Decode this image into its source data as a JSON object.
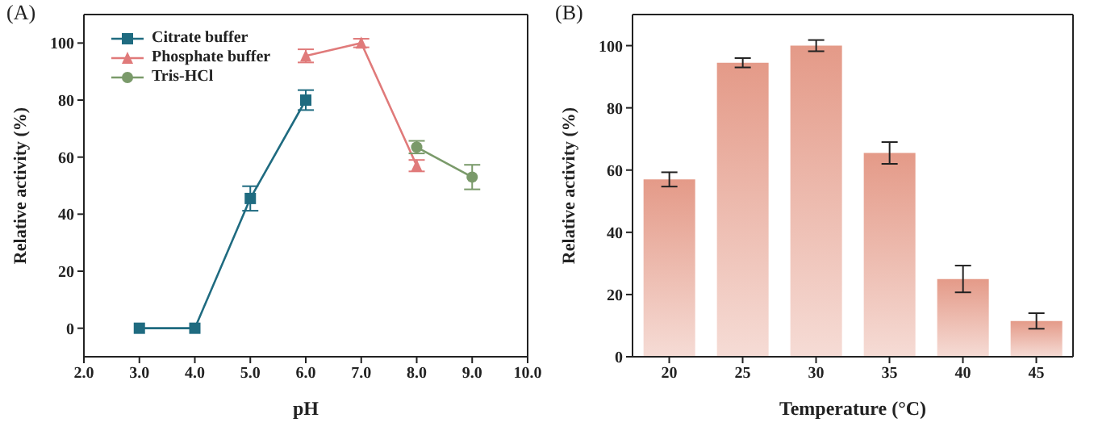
{
  "chart_data": [
    {
      "type": "line",
      "title": "(A)",
      "xlabel": "pH",
      "ylabel": "Relative activity (%)",
      "xlim": [
        2,
        10
      ],
      "xticks": [
        {
          "value": 2,
          "label": "2.0"
        },
        {
          "value": 3,
          "label": "3.0"
        },
        {
          "value": 4,
          "label": "4.0"
        },
        {
          "value": 5,
          "label": "5.0"
        },
        {
          "value": 6,
          "label": "6.0"
        },
        {
          "value": 7,
          "label": "7.0"
        },
        {
          "value": 8,
          "label": "8.0"
        },
        {
          "value": 9,
          "label": "9.0"
        },
        {
          "value": 10,
          "label": "10.0"
        }
      ],
      "ylim": [
        -10,
        110
      ],
      "yticks": [
        0,
        20,
        40,
        60,
        80,
        100
      ],
      "legend": "top left",
      "series": [
        {
          "name": "Citrate buffer",
          "color": "#1f6b80",
          "marker": "square",
          "x": [
            3,
            4,
            5,
            6
          ],
          "values": [
            0,
            0,
            45.5,
            80
          ],
          "errors": [
            null,
            null,
            4.3,
            3.5
          ]
        },
        {
          "name": "Phosphate buffer",
          "color": "#e07a7a",
          "marker": "triangle",
          "x": [
            6,
            7,
            8
          ],
          "values": [
            95.5,
            100,
            57
          ],
          "errors": [
            2.3,
            1.5,
            2
          ]
        },
        {
          "name": "Tris-HCl",
          "color": "#7a9a6a",
          "marker": "circle",
          "x": [
            8,
            9
          ],
          "values": [
            63.5,
            53
          ],
          "errors": [
            2.2,
            4.3
          ]
        }
      ]
    },
    {
      "type": "bar",
      "title": "(B)",
      "xlabel": "Temperature (°C)",
      "ylabel": "Relative activity (%)",
      "categories": [
        "20",
        "25",
        "30",
        "35",
        "40",
        "45"
      ],
      "values": [
        57,
        94.5,
        100,
        65.5,
        25,
        11.5
      ],
      "errors": [
        2.3,
        1.5,
        1.8,
        3.5,
        4.3,
        2.5
      ],
      "color": "#e49a88",
      "ylim": [
        0,
        110
      ],
      "yticks": [
        0,
        20,
        40,
        60,
        80,
        100
      ]
    }
  ]
}
